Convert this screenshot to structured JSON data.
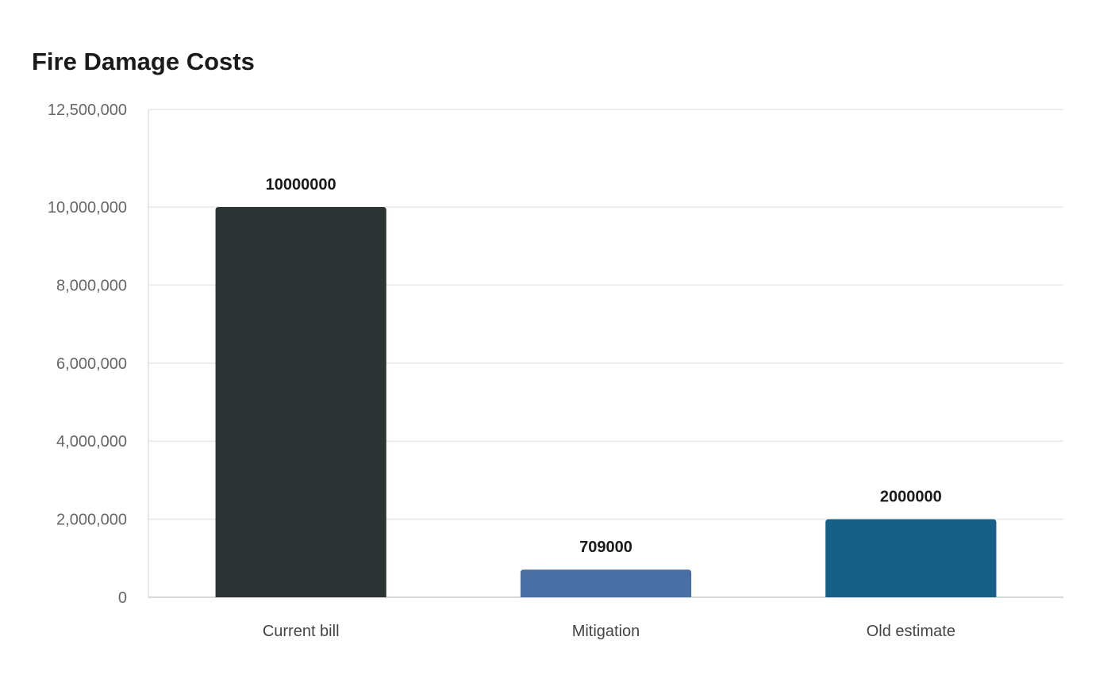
{
  "chart_data": {
    "type": "bar",
    "title": "Fire Damage Costs",
    "xlabel": "",
    "ylabel": "",
    "categories": [
      "Current bill",
      "Mitigation",
      "Old estimate"
    ],
    "values": [
      10000000,
      709000,
      2000000
    ],
    "data_labels": [
      "10000000",
      "709000",
      "2000000"
    ],
    "colors": [
      "#2d3436",
      "#4a6fa5",
      "#166088"
    ],
    "ylim": [
      0,
      12500000
    ],
    "yticks": [
      0,
      2000000,
      4000000,
      6000000,
      8000000,
      10000000,
      12500000
    ],
    "ytick_labels": [
      "0",
      "2,000,000",
      "4,000,000",
      "6,000,000",
      "8,000,000",
      "10,000,000",
      "12,500,000"
    ],
    "grid": true,
    "legend": "none"
  }
}
